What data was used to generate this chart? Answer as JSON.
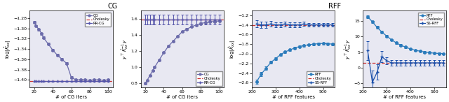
{
  "cg_title": "CG",
  "rff_title": "RFF",
  "cg_iters": [
    20,
    22,
    25,
    28,
    30,
    35,
    40,
    45,
    50,
    55,
    60,
    65,
    70,
    75,
    80,
    85,
    90,
    95,
    100
  ],
  "cg_logdet": [
    -1.288,
    -1.295,
    -1.302,
    -1.31,
    -1.318,
    -1.33,
    -1.342,
    -1.352,
    -1.36,
    -1.368,
    -1.395,
    -1.4,
    -1.4,
    -1.4,
    -1.401,
    -1.4,
    -1.4,
    -1.401,
    -1.4
  ],
  "cg_logdet_err": [
    0.002,
    0.002,
    0.002,
    0.002,
    0.002,
    0.002,
    0.002,
    0.002,
    0.002,
    0.002,
    0.002,
    0.002,
    0.002,
    0.002,
    0.002,
    0.002,
    0.002,
    0.002,
    0.002
  ],
  "chol_logdet_cg": -1.403,
  "rrcg_logdet": [
    -1.403,
    -1.403,
    -1.403,
    -1.403,
    -1.403,
    -1.403,
    -1.403,
    -1.403,
    -1.403,
    -1.403,
    -1.403,
    -1.403,
    -1.403,
    -1.403,
    -1.403,
    -1.403,
    -1.403,
    -1.403,
    -1.403
  ],
  "rrcg_logdet_err": [
    0.0005,
    0.0005,
    0.0005,
    0.0005,
    0.0005,
    0.0005,
    0.0005,
    0.0005,
    0.0005,
    0.0005,
    0.0005,
    0.0005,
    0.0005,
    0.0005,
    0.0005,
    0.0005,
    0.0005,
    0.0005,
    0.0005
  ],
  "cg_quad": [
    0.8,
    0.84,
    0.9,
    0.96,
    1.0,
    1.09,
    1.18,
    1.26,
    1.32,
    1.38,
    1.44,
    1.47,
    1.5,
    1.52,
    1.54,
    1.55,
    1.56,
    1.565,
    1.57
  ],
  "cg_quad_err": [
    0.01,
    0.01,
    0.01,
    0.01,
    0.01,
    0.01,
    0.01,
    0.01,
    0.01,
    0.01,
    0.01,
    0.01,
    0.01,
    0.01,
    0.01,
    0.01,
    0.01,
    0.01,
    0.01
  ],
  "chol_quad_cg": 1.585,
  "rrcg_quad": [
    1.585,
    1.585,
    1.585,
    1.585,
    1.585,
    1.585,
    1.585,
    1.585,
    1.585,
    1.585,
    1.585,
    1.585,
    1.585,
    1.585,
    1.585,
    1.585,
    1.585,
    1.585,
    1.585
  ],
  "rrcg_quad_err": [
    0.06,
    0.06,
    0.06,
    0.06,
    0.06,
    0.06,
    0.06,
    0.06,
    0.06,
    0.06,
    0.06,
    0.06,
    0.06,
    0.06,
    0.06,
    0.06,
    0.06,
    0.06,
    0.06
  ],
  "rff_features": [
    220,
    240,
    260,
    280,
    300,
    320,
    340,
    360,
    380,
    400,
    420,
    440,
    460,
    480,
    500,
    520,
    540
  ],
  "rff_logdet": [
    -2.58,
    -2.42,
    -2.3,
    -2.18,
    -2.1,
    -2.02,
    -1.96,
    -1.92,
    -1.88,
    -1.85,
    -1.83,
    -1.81,
    -1.8,
    -1.79,
    -1.785,
    -1.79,
    -1.8
  ],
  "rff_logdet_err": [
    0.04,
    0.04,
    0.035,
    0.03,
    0.03,
    0.025,
    0.025,
    0.025,
    0.025,
    0.025,
    0.02,
    0.02,
    0.02,
    0.02,
    0.02,
    0.02,
    0.02
  ],
  "ssrff_logdet": [
    -1.38,
    -1.4,
    -1.4,
    -1.38,
    -1.4,
    -1.4,
    -1.38,
    -1.4,
    -1.4,
    -1.4,
    -1.38,
    -1.4,
    -1.4,
    -1.4,
    -1.4,
    -1.4,
    -1.4
  ],
  "ssrff_logdet_err": [
    0.07,
    0.06,
    0.06,
    0.06,
    0.05,
    0.05,
    0.05,
    0.05,
    0.05,
    0.05,
    0.04,
    0.04,
    0.04,
    0.04,
    0.04,
    0.04,
    0.04
  ],
  "chol_logdet_rff": -1.403,
  "rff_quad": [
    16.5,
    14.8,
    13.0,
    11.5,
    10.2,
    9.0,
    8.0,
    7.2,
    6.6,
    6.0,
    5.6,
    5.3,
    5.0,
    4.8,
    4.65,
    4.55,
    4.5
  ],
  "rff_quad_err": [
    0.5,
    0.4,
    0.4,
    0.35,
    0.3,
    0.3,
    0.3,
    0.3,
    0.25,
    0.25,
    0.25,
    0.25,
    0.25,
    0.25,
    0.25,
    0.25,
    0.25
  ],
  "ssrff_quad": [
    5.5,
    -4.8,
    -1.5,
    3.5,
    2.2,
    1.5,
    1.5,
    1.5,
    1.5,
    1.5,
    1.5,
    1.5,
    1.5,
    1.5,
    1.5,
    1.5,
    1.5
  ],
  "ssrff_quad_err": [
    3.0,
    3.8,
    2.5,
    1.8,
    1.2,
    0.9,
    0.8,
    0.8,
    0.8,
    0.8,
    0.8,
    0.8,
    0.8,
    0.8,
    0.8,
    0.8,
    0.8
  ],
  "chol_quad_rff": 1.585,
  "color_cg": "#6b6baa",
  "color_rff_blue": "#2b7bbb",
  "color_chol": "#cc3333",
  "color_rrcg": "#5555aa",
  "color_ssrff": "#1a4faa",
  "bg_color": "#e8e8f2",
  "xlabel_cg": "# of CG iters",
  "xlabel_rff": "# of RFF features"
}
